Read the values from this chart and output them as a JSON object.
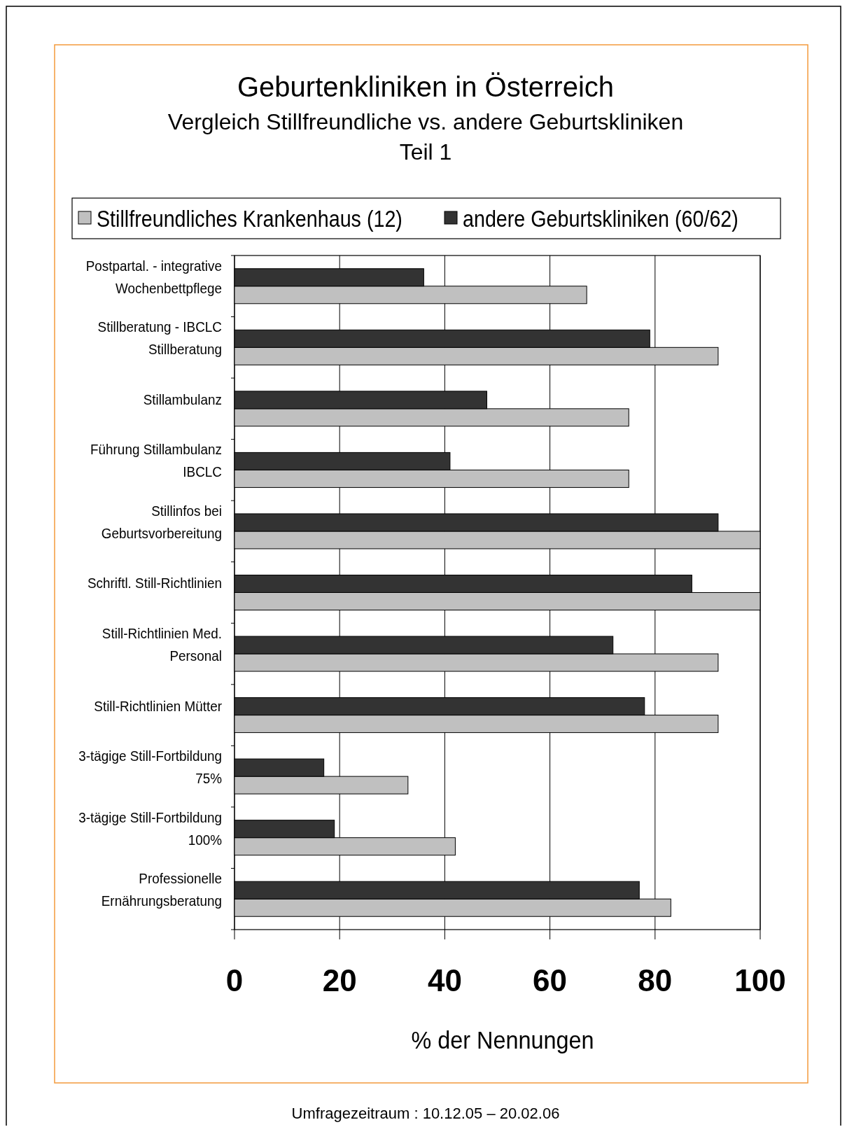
{
  "chart_data": {
    "type": "bar",
    "orientation": "horizontal",
    "title": "Geburtenkliniken in Österreich",
    "subtitle": "Vergleich Stillfreundliche vs. andere Geburtskliniken\nTeil 1",
    "xlabel": "% der Nennungen",
    "categories": [
      "Postpartal. - integrative\nWochenbettpflege",
      "Stillberatung - IBCLC\nStillberatung",
      "Stillambulanz",
      "Führung Stillambulanz\nIBCLC",
      "Stillinfos bei\nGeburtsvorbereitung",
      "Schriftl. Still-Richtlinien",
      "Still-Richtlinien Med.\nPersonal",
      "Still-Richtlinien Mütter",
      "3-tägige Still-Fortbildung\n75%",
      "3-tägige Still-Fortbildung\n100%",
      "Professionelle\nErnährungsberatung"
    ],
    "series": [
      {
        "name": "Stillfreundliches Krankenhaus (12)",
        "color": "#c0c0c0",
        "values": [
          67,
          92,
          75,
          75,
          100,
          100,
          92,
          92,
          33,
          42,
          83
        ]
      },
      {
        "name": "andere Geburtskliniken (60/62)",
        "color": "#333333",
        "values": [
          36,
          79,
          48,
          41,
          92,
          87,
          72,
          78,
          17,
          19,
          77
        ]
      }
    ],
    "xlim": [
      0,
      100
    ],
    "xticks": [
      0,
      20,
      40,
      60,
      80,
      100
    ],
    "grid": "x",
    "legend": "top",
    "annotations": [
      "Umfragezeitraum : 10.12.05 – 20.02.06"
    ]
  }
}
